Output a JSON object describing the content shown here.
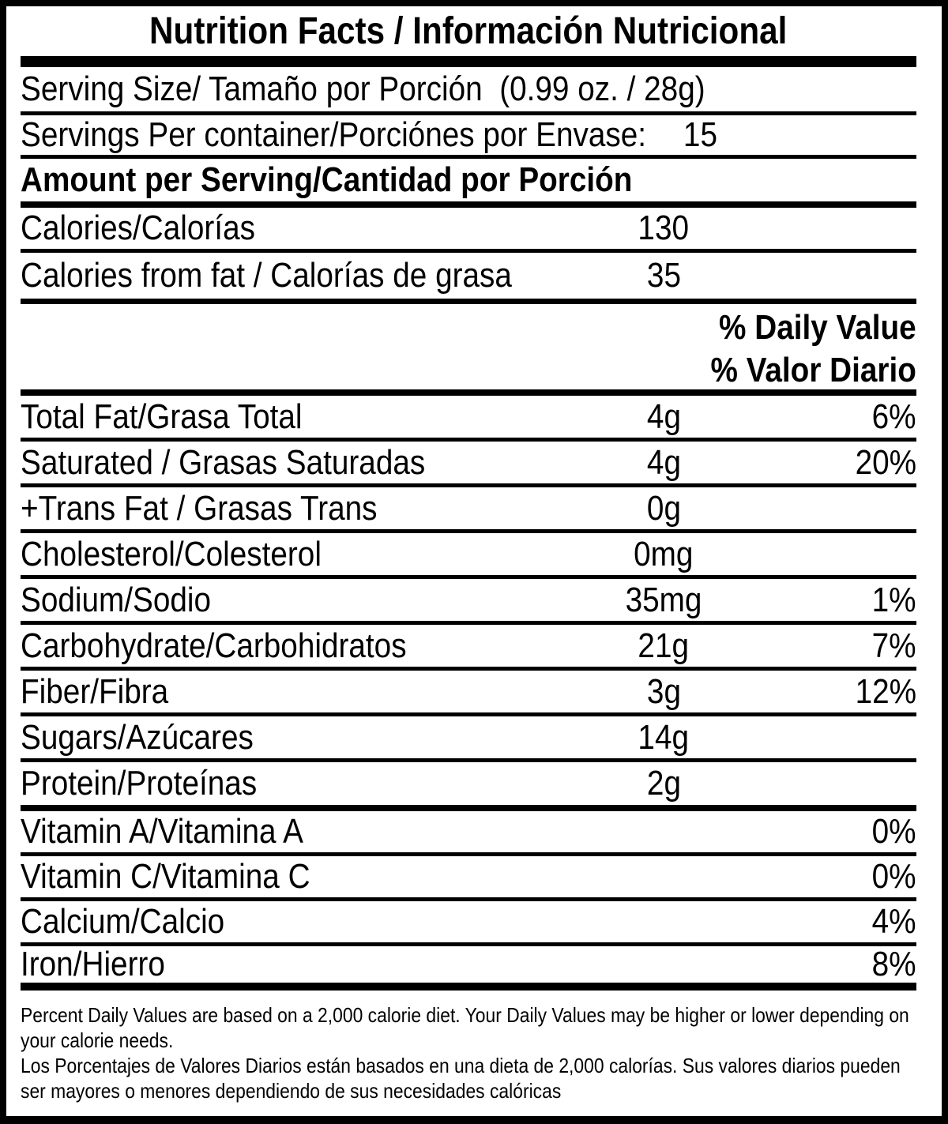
{
  "colors": {
    "ink": "#000000",
    "paper": "#ffffff"
  },
  "header": {
    "title": "Nutrition Facts / Información Nutricional"
  },
  "serving_info": {
    "serving_size": "Serving Size/ Tamaño por Porción  (0.99 oz. / 28g)",
    "servings_per_container_label": "Servings Per container/Porciónes por Envase:",
    "servings_per_container_value": "15"
  },
  "amount_header": "Amount per Serving/Cantidad por Porción",
  "calories": {
    "label": "Calories/Calorías",
    "value": "130"
  },
  "calories_from_fat": {
    "label": "Calories from fat / Calorías de grasa",
    "value": "35"
  },
  "daily_value_header": {
    "en": "% Daily Value",
    "es": "% Valor Diario"
  },
  "nutrients": [
    {
      "label": "Total Fat/Grasa Total",
      "amount": "4g",
      "dv": "6%"
    },
    {
      "label": "Saturated / Grasas Saturadas",
      "amount": "4g",
      "dv": "20%"
    },
    {
      "label": "+Trans Fat / Grasas Trans",
      "amount": "0g",
      "dv": ""
    },
    {
      "label": "Cholesterol/Colesterol",
      "amount": "0mg",
      "dv": ""
    },
    {
      "label": "Sodium/Sodio",
      "amount": "35mg",
      "dv": "1%"
    },
    {
      "label": "Carbohydrate/Carbohidratos",
      "amount": "21g",
      "dv": "7%"
    },
    {
      "label": "Fiber/Fibra",
      "amount": "3g",
      "dv": "12%"
    },
    {
      "label": "Sugars/Azúcares",
      "amount": "14g",
      "dv": ""
    },
    {
      "label": "Protein/Proteínas",
      "amount": "2g",
      "dv": ""
    }
  ],
  "micronutrients": [
    {
      "label": "Vitamin A/Vitamina A",
      "dv": "0%"
    },
    {
      "label": "Vitamin C/Vitamina C",
      "dv": "0%"
    },
    {
      "label": "Calcium/Calcio",
      "dv": "4%"
    },
    {
      "label": "Iron/Hierro",
      "dv": "8%"
    }
  ],
  "footnote": {
    "en": "Percent Daily Values are based on a 2,000 calorie diet. Your Daily Values may be higher or lower depending on your calorie needs.",
    "es": "Los Porcentajes de Valores Diarios están basados en una dieta de 2,000 calorías. Sus valores diarios pueden ser mayores o menores dependiendo de sus necesidades calóricas"
  }
}
